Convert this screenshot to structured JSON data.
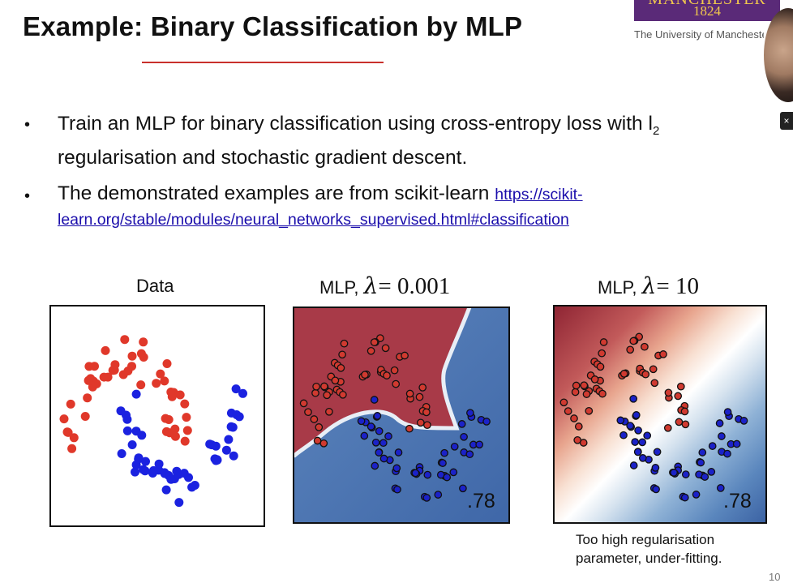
{
  "slide": {
    "title": "Example: Binary Classification by MLP",
    "logo_word": "MANCHESTER",
    "logo_year": "1824",
    "logo_sub": "The University of Manchester",
    "close_glyph": "×",
    "page_number": "10"
  },
  "bullets": [
    {
      "line1": "Train an MLP for binary classification using cross-entropy loss with l",
      "sub": "2",
      "line2": "regularisation and stochastic gradient descent."
    },
    {
      "line1": "The demonstrated examples are from scikit-learn",
      "link1": "https://scikit-",
      "link2": "learn.org/stable/modules/neural_networks_supervised.html#classification"
    }
  ],
  "panels": {
    "data": {
      "label": "Data"
    },
    "mlp_low": {
      "label": "MLP,",
      "lambda_sym": "λ",
      "eq": "= 0.001",
      "score": ".78"
    },
    "mlp_high": {
      "label": "MLP,",
      "lambda_sym": "λ",
      "eq": "= 10",
      "score": ".78",
      "caption1": "Too high regularisation",
      "caption2": "parameter, under-fitting."
    }
  },
  "colors": {
    "red_class": "#e0382a",
    "blue_class": "#1b22e0",
    "title_rule": "#c9302c",
    "link": "#1a0dab",
    "logo_bg": "#5a2a78",
    "logo_fg": "#f2c94c"
  },
  "icons": [
    "presenter-video",
    "close-icon"
  ]
}
